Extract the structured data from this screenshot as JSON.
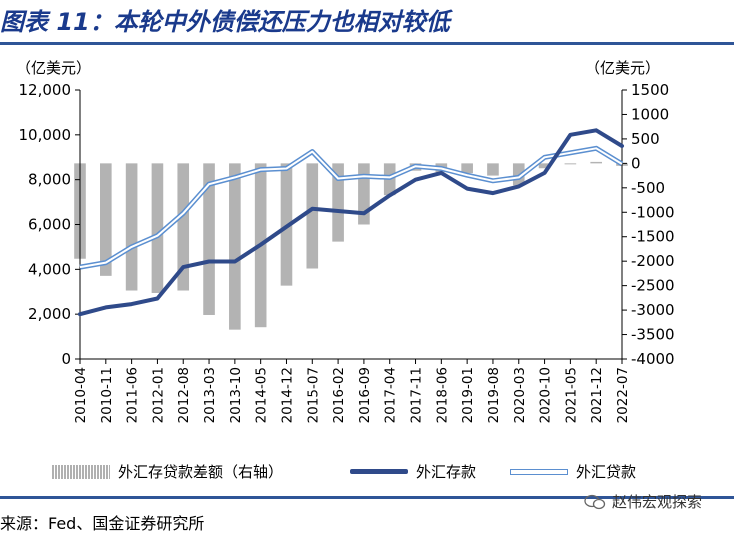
{
  "header": {
    "title": "图表 11：本轮中外债偿还压力也相对较低"
  },
  "units": {
    "left": "（亿美元）",
    "right": "（亿美元）"
  },
  "footer": {
    "source": "来源：Fed、国金证券研究所",
    "watermark": "赵伟宏观探索"
  },
  "colors": {
    "deposit": "#2f4a8a",
    "loan": "#5b8fd0",
    "bar": "#b3b3b3",
    "title": "#1a3a8c",
    "rule": "#2f5597"
  },
  "chart_data": {
    "type": "line",
    "x": [
      "2010-04",
      "2010-11",
      "2011-06",
      "2012-01",
      "2012-08",
      "2013-03",
      "2013-10",
      "2014-05",
      "2014-12",
      "2015-07",
      "2016-02",
      "2016-09",
      "2017-04",
      "2017-11",
      "2018-06",
      "2019-01",
      "2019-08",
      "2020-03",
      "2020-10",
      "2021-05",
      "2021-12",
      "2022-07"
    ],
    "xlabels": [
      "2010-04",
      "2010-11",
      "2011-06",
      "2012-01",
      "2012-08",
      "2013-03",
      "2013-10",
      "2014-05",
      "2014-12",
      "2015-07",
      "2016-02",
      "2016-09",
      "2017-04",
      "2017-11",
      "2018-06",
      "2019-01",
      "2019-08",
      "2020-03",
      "2020-10",
      "2021-05",
      "2021-12",
      "2022-07"
    ],
    "y_left": {
      "ticks": [
        "0",
        "2,000",
        "4,000",
        "6,000",
        "8,000",
        "10,000",
        "12,000"
      ],
      "range": [
        0,
        12000
      ]
    },
    "y_right": {
      "ticks": [
        "-4000",
        "-3500",
        "-3000",
        "-2500",
        "-2000",
        "-1500",
        "-1000",
        "-500",
        "0",
        "500",
        "1000",
        "1500"
      ],
      "range": [
        -4000,
        1500
      ]
    },
    "series": [
      {
        "name": "外汇存贷款差额（右轴）",
        "axis": "right",
        "kind": "bar",
        "values": [
          -1950,
          -2300,
          -2600,
          -2650,
          -2600,
          -3100,
          -3400,
          -3350,
          -2500,
          -2150,
          -1600,
          -1250,
          -650,
          -150,
          -180,
          -200,
          -250,
          -450,
          -100,
          -20,
          30,
          -50
        ]
      },
      {
        "name": "外汇存款",
        "axis": "left",
        "kind": "line",
        "values": [
          2000,
          2300,
          2450,
          2700,
          4100,
          4350,
          4350,
          5100,
          5900,
          6700,
          6600,
          6500,
          7300,
          8000,
          8300,
          7600,
          7400,
          7700,
          8300,
          10000,
          10200,
          9500
        ]
      },
      {
        "name": "外汇贷款",
        "axis": "left",
        "kind": "line",
        "values": [
          4100,
          4300,
          5000,
          5500,
          6500,
          7800,
          8100,
          8450,
          8500,
          9250,
          8050,
          8150,
          8100,
          8600,
          8500,
          8200,
          7950,
          8100,
          9000,
          9200,
          9400,
          8700
        ]
      }
    ],
    "legend": [
      "外汇存贷款差额（右轴）",
      "外汇存款",
      "外汇贷款"
    ],
    "legend_position": "bottom",
    "grid": false
  }
}
